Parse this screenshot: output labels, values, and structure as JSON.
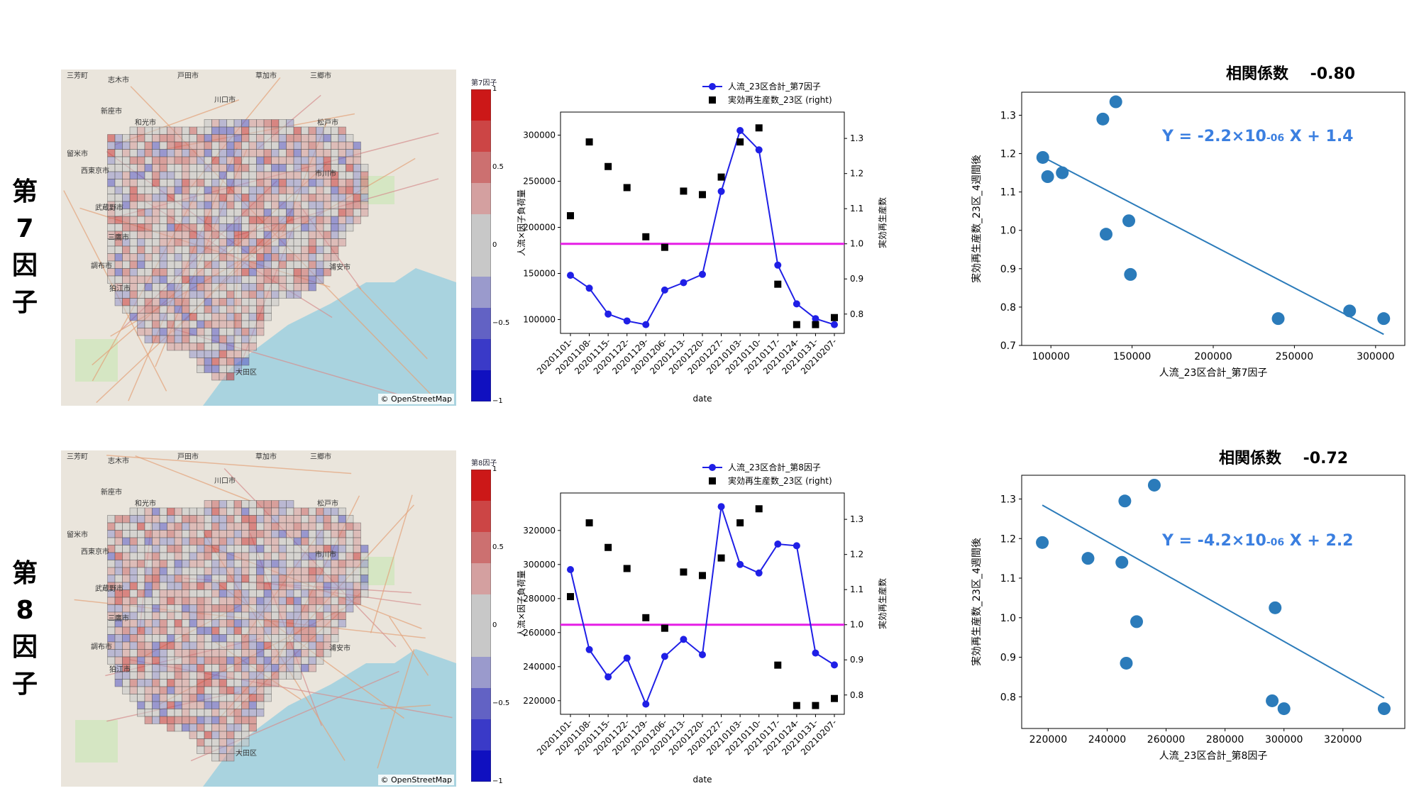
{
  "rows": [
    {
      "label_chars": [
        "第",
        "7",
        "因",
        "子"
      ],
      "colorbar_title": "第7因子",
      "map_attribution": "© OpenStreetMap",
      "map_places": [
        "三芳町",
        "志木市",
        "戸田市",
        "草加市",
        "三郷市",
        "新座市",
        "和光市",
        "川口市",
        "松戸市",
        "留米市",
        "西東京市",
        "市川市",
        "武蔵野市",
        "三鷹市",
        "調布市",
        "狛江市",
        "浦安市",
        "大田区"
      ],
      "colorbar_ticks": [
        "1",
        "0.5",
        "0",
        "−0.5",
        "−1"
      ],
      "correlation_label": "相関係数",
      "correlation_value": "-0.80",
      "equation_prefix": "Y = -2.2×10",
      "equation_exp": "-06",
      "equation_suffix": " X + 1.4"
    },
    {
      "label_chars": [
        "第",
        "8",
        "因",
        "子"
      ],
      "colorbar_title": "第8因子",
      "map_attribution": "© OpenStreetMap",
      "map_places": [
        "三芳町",
        "志木市",
        "戸田市",
        "草加市",
        "三郷市",
        "新座市",
        "和光市",
        "川口市",
        "松戸市",
        "留米市",
        "西東京市",
        "市川市",
        "武蔵野市",
        "三鷹市",
        "調布市",
        "狛江市",
        "浦安市",
        "大田区"
      ],
      "colorbar_ticks": [
        "1",
        "0.5",
        "0",
        "−0.5",
        "−1"
      ],
      "correlation_label": "相関係数",
      "correlation_value": "-0.72",
      "equation_prefix": "Y = -4.2×10",
      "equation_exp": "-06",
      "equation_suffix": " X + 2.2"
    }
  ],
  "colors": {
    "flow_line": "#1f1fe6",
    "rt_marker": "#000000",
    "threshold_line": "#e61ee6",
    "scatter": "#2b7bba",
    "equation": "#3b7fe0"
  },
  "chart_data": [
    {
      "type": "line",
      "title": "",
      "xlabel": "date",
      "ylabel": "人流×因子負荷量",
      "y2label": "実効再生産数",
      "categories": [
        "20201101-",
        "20201108-",
        "20201115-",
        "20201122-",
        "20201129-",
        "20201206-",
        "20201213-",
        "20201220-",
        "20201227-",
        "20210103-",
        "20210110-",
        "20210117-",
        "20210124-",
        "20210131-",
        "20210207-"
      ],
      "series": [
        {
          "name": "人流_23区合計_第7因子",
          "axis": "left",
          "style": "line-marker",
          "values": [
            148000,
            134000,
            106000,
            98500,
            94500,
            132000,
            140000,
            149000,
            239000,
            305000,
            284000,
            159000,
            117000,
            101000,
            94500
          ]
        },
        {
          "name": "実効再生産数_23区 (right)",
          "axis": "right",
          "style": "square",
          "values": [
            1.08,
            1.29,
            1.22,
            1.16,
            1.02,
            0.99,
            1.15,
            1.14,
            1.19,
            1.29,
            1.33,
            0.885,
            0.77,
            0.77,
            0.79
          ]
        }
      ],
      "reference_line": {
        "axis": "right",
        "value": 1.0
      },
      "ylim": [
        85000,
        325000
      ],
      "y2lim": [
        0.745,
        1.375
      ],
      "yticks": [
        100000,
        150000,
        200000,
        250000,
        300000
      ],
      "y2ticks": [
        0.8,
        0.9,
        1.0,
        1.1,
        1.2,
        1.3
      ],
      "legend": "top-right"
    },
    {
      "type": "scatter",
      "title": "相関係数 -0.80",
      "xlabel": "人流_23区合計_第7因子",
      "ylabel": "実効再生産数_23区_4週間後",
      "x": [
        95000,
        98000,
        107000,
        132000,
        134000,
        140000,
        148000,
        149000,
        240000,
        284000,
        305000
      ],
      "y": [
        1.19,
        1.14,
        1.15,
        1.29,
        0.99,
        1.335,
        1.025,
        0.885,
        0.77,
        0.79,
        0.77
      ],
      "fit": {
        "slope": -2.2e-06,
        "intercept": 1.4,
        "x_range": [
          95000,
          305000
        ]
      },
      "xlim": [
        82000,
        318000
      ],
      "ylim": [
        0.7,
        1.36
      ],
      "xticks": [
        100000,
        150000,
        200000,
        250000,
        300000
      ],
      "yticks": [
        0.7,
        0.8,
        0.9,
        1.0,
        1.1,
        1.2,
        1.3
      ]
    },
    {
      "type": "line",
      "title": "",
      "xlabel": "date",
      "ylabel": "人流×因子負荷量",
      "y2label": "実効再生産数",
      "categories": [
        "20201101-",
        "20201108-",
        "20201115-",
        "20201122-",
        "20201129-",
        "20201206-",
        "20201213-",
        "20201220-",
        "20201227-",
        "20210103-",
        "20210110-",
        "20210117-",
        "20210124-",
        "20210131-",
        "20210207-"
      ],
      "series": [
        {
          "name": "人流_23区合計_第8因子",
          "axis": "left",
          "style": "line-marker",
          "values": [
            297000,
            250000,
            234000,
            245000,
            218000,
            246000,
            256000,
            247000,
            334000,
            300000,
            295000,
            312000,
            311000,
            248000,
            241000
          ]
        },
        {
          "name": "実効再生産数_23区 (right)",
          "axis": "right",
          "style": "square",
          "values": [
            1.08,
            1.29,
            1.22,
            1.16,
            1.02,
            0.99,
            1.15,
            1.14,
            1.19,
            1.29,
            1.33,
            0.885,
            0.77,
            0.77,
            0.79
          ]
        }
      ],
      "reference_line": {
        "axis": "right",
        "value": 1.0
      },
      "ylim": [
        212000,
        342000
      ],
      "y2lim": [
        0.745,
        1.375
      ],
      "yticks": [
        220000,
        240000,
        260000,
        280000,
        300000,
        320000
      ],
      "y2ticks": [
        0.8,
        0.9,
        1.0,
        1.1,
        1.2,
        1.3
      ],
      "legend": "top-right"
    },
    {
      "type": "scatter",
      "title": "相関係数 -0.72",
      "xlabel": "人流_23区合計_第8因子",
      "ylabel": "実効再生産数_23区_4週間後",
      "x": [
        218000,
        233500,
        245000,
        246000,
        246500,
        250000,
        256000,
        296000,
        297000,
        300000,
        334000
      ],
      "y": [
        1.19,
        1.15,
        1.14,
        1.295,
        0.885,
        0.99,
        1.335,
        0.79,
        1.025,
        0.77,
        0.77
      ],
      "fit": {
        "slope": -4.2e-06,
        "intercept": 2.2,
        "x_range": [
          218000,
          334000
        ]
      },
      "xlim": [
        211000,
        341000
      ],
      "ylim": [
        0.72,
        1.36
      ],
      "xticks": [
        220000,
        240000,
        260000,
        280000,
        300000,
        320000
      ],
      "yticks": [
        0.8,
        0.9,
        1.0,
        1.1,
        1.2,
        1.3
      ]
    }
  ]
}
